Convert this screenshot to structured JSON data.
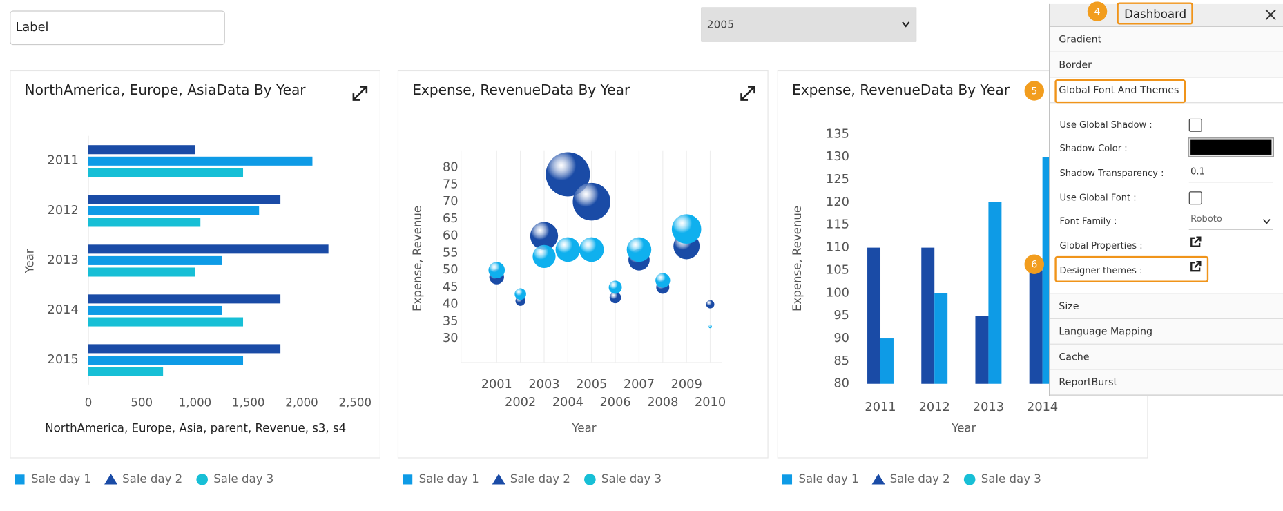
{
  "label_input": {
    "value": "Label"
  },
  "year_select": {
    "value": "2005"
  },
  "chart_data": [
    {
      "type": "hbar",
      "title": "NorthAmerica, Europe, AsiaData By Year",
      "x_label": "NorthAmerica, Europe, Asia, parent, Revenue, s3, s4",
      "y_label": "Year",
      "categories": [
        "2011",
        "2012",
        "2013",
        "2014",
        "2015"
      ],
      "series": [
        {
          "color": "#1a4ba6",
          "values": [
            1000,
            1800,
            2250,
            1800,
            1800
          ]
        },
        {
          "color": "#0e9be6",
          "values": [
            2100,
            1600,
            1250,
            1250,
            1450
          ]
        },
        {
          "color": "#17bfd6",
          "values": [
            1450,
            1050,
            1000,
            1450,
            700
          ]
        }
      ],
      "xlim": [
        0,
        2500
      ],
      "xticks": [
        0,
        500,
        {
          "value": 1000,
          "label": "1,000"
        },
        {
          "value": 1500,
          "label": "1,500"
        },
        {
          "value": 2000,
          "label": "2,000"
        },
        {
          "value": 2500,
          "label": "2,500"
        }
      ],
      "legend": [
        {
          "name": "Sale day 1",
          "color": "#0e9be6",
          "marker": "square"
        },
        {
          "name": "Sale day 2",
          "color": "#1a4ba6",
          "marker": "triangle"
        },
        {
          "name": "Sale day 3",
          "color": "#17bfd6",
          "marker": "circle"
        }
      ]
    },
    {
      "type": "bubble",
      "title": "Expense, RevenueData By Year",
      "x_label": "Year",
      "y_label": "Expense, Revenue",
      "x": [
        2001,
        2002,
        2003,
        2004,
        2005,
        2006,
        2007,
        2008,
        2009,
        2010
      ],
      "series": [
        {
          "color": "#1a4ba6",
          "values": [
            48,
            41,
            60,
            78,
            70,
            42,
            53,
            45,
            57,
            40
          ],
          "sizes": [
            9,
            6,
            17,
            27,
            23,
            7,
            13,
            8,
            16,
            5
          ]
        },
        {
          "color": "#0fb0ee",
          "values": [
            50,
            43,
            54,
            56,
            56,
            45,
            56,
            47,
            62,
            33.5
          ],
          "sizes": [
            10,
            7,
            14,
            15,
            15,
            8,
            15,
            9,
            18,
            2
          ]
        }
      ],
      "xlim": [
        1999.5,
        2010.5
      ],
      "xticks": [
        2001,
        2002,
        2003,
        2004,
        2005,
        2006,
        2007,
        2008,
        2009,
        2010
      ],
      "ylim": [
        23,
        85
      ],
      "yticks": [
        30,
        35,
        40,
        45,
        50,
        55,
        60,
        65,
        70,
        75,
        80
      ],
      "grid": true,
      "legend": [
        {
          "name": "Sale day 1",
          "color": "#0e9be6",
          "marker": "square"
        },
        {
          "name": "Sale day 2",
          "color": "#1a4ba6",
          "marker": "triangle"
        },
        {
          "name": "Sale day 3",
          "color": "#17bfd6",
          "marker": "circle"
        }
      ]
    },
    {
      "type": "bar",
      "title": "Expense, RevenueData By Year",
      "x_label": "Year",
      "y_label": "Expense, Revenue",
      "categories": [
        "2011",
        "2012",
        "2013",
        "2014"
      ],
      "series": [
        {
          "color": "#1a4ba6",
          "values": [
            110,
            110,
            95,
            105
          ]
        },
        {
          "color": "#0e9be6",
          "values": [
            90,
            100,
            120,
            130
          ]
        }
      ],
      "ylim": [
        80,
        135
      ],
      "yticks": [
        80,
        85,
        90,
        95,
        100,
        105,
        110,
        115,
        120,
        125,
        130,
        135
      ],
      "legend": [
        {
          "name": "Sale day 1",
          "color": "#0e9be6",
          "marker": "square"
        },
        {
          "name": "Sale day 2",
          "color": "#1a4ba6",
          "marker": "triangle"
        },
        {
          "name": "Sale day 3",
          "color": "#17bfd6",
          "marker": "circle"
        }
      ]
    }
  ],
  "panel": {
    "title": "Dashboard",
    "sections": [
      "Gradient",
      "Border",
      "Global Font And Themes",
      "Size",
      "Language Mapping",
      "Cache",
      "ReportBurst"
    ],
    "fields": [
      {
        "label": "Use Global Shadow :"
      },
      {
        "label": "Shadow Color :"
      },
      {
        "label": "Shadow Transparency :",
        "value": "0.1"
      },
      {
        "label": "Use Global Font :"
      },
      {
        "label": "Font Family :",
        "value": "Roboto"
      },
      {
        "label": "Global Properties :"
      },
      {
        "label": "Designer themes :"
      }
    ],
    "badges": [
      "4",
      "5",
      "6"
    ]
  }
}
